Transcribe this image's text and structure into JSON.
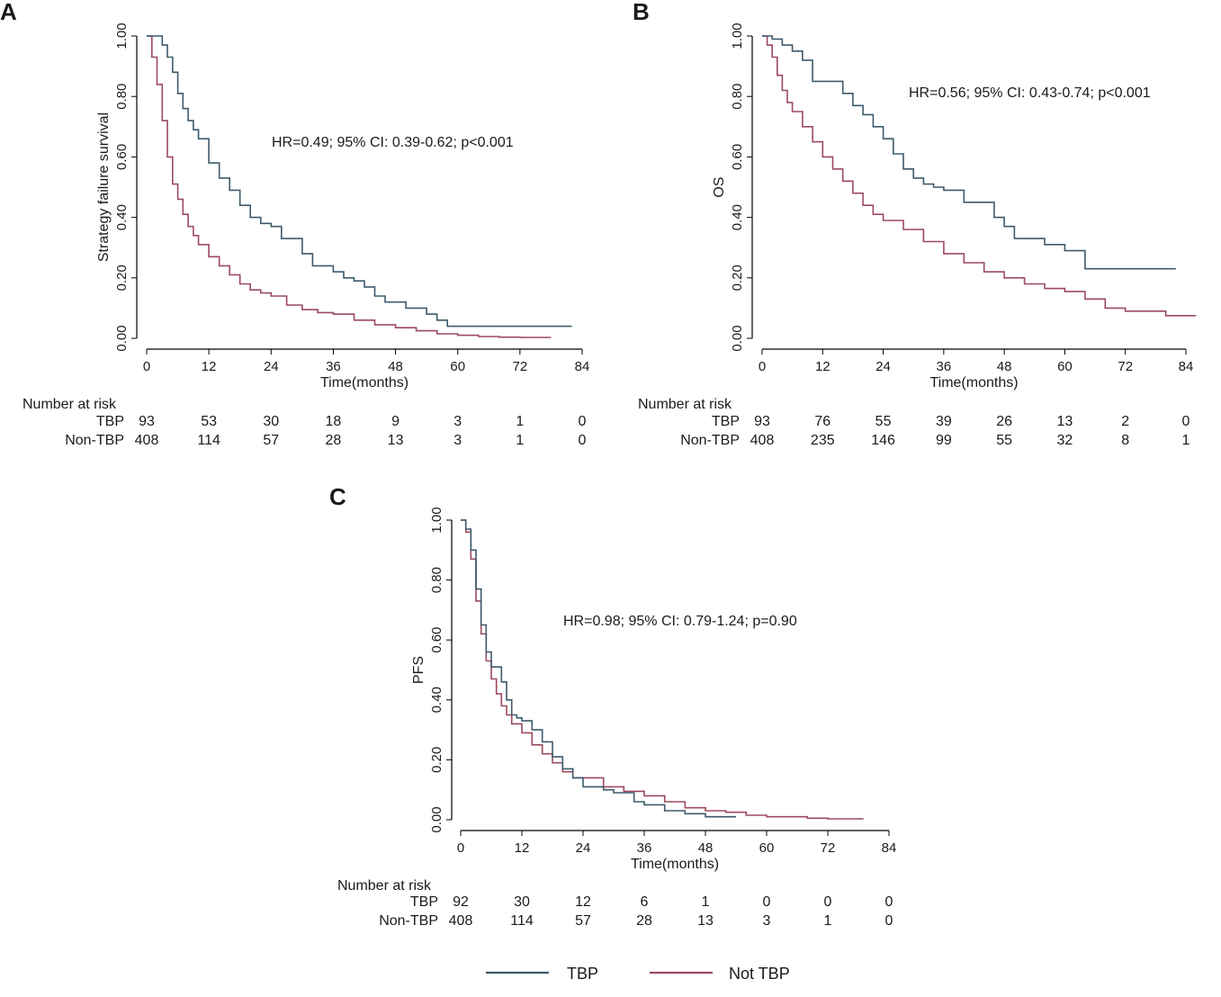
{
  "chart_data": [
    {
      "panel": "A",
      "type": "line",
      "title": "",
      "xlabel": "Time(months)",
      "ylabel": "Strategy failure survival",
      "xlim": [
        0,
        84
      ],
      "ylim": [
        0,
        1
      ],
      "xticks": [
        0,
        12,
        24,
        36,
        48,
        60,
        72,
        84
      ],
      "yticks": [
        "0.00",
        "0.20",
        "0.40",
        "0.60",
        "0.80",
        "1.00"
      ],
      "annotation": "HR=0.49; 95% CI: 0.39-0.62; p<0.001",
      "series": [
        {
          "name": "TBP",
          "color": "#3d5a6c",
          "x": [
            0,
            2,
            3,
            4,
            5,
            6,
            7,
            8,
            9,
            10,
            12,
            14,
            16,
            18,
            20,
            22,
            24,
            26,
            28,
            30,
            32,
            34,
            36,
            38,
            40,
            42,
            44,
            46,
            48,
            50,
            52,
            54,
            56,
            58,
            60,
            82
          ],
          "y": [
            1.0,
            1.0,
            0.97,
            0.93,
            0.88,
            0.81,
            0.76,
            0.72,
            0.69,
            0.66,
            0.58,
            0.53,
            0.49,
            0.44,
            0.4,
            0.38,
            0.37,
            0.33,
            0.33,
            0.28,
            0.24,
            0.24,
            0.22,
            0.2,
            0.19,
            0.17,
            0.14,
            0.12,
            0.12,
            0.1,
            0.1,
            0.08,
            0.06,
            0.04,
            0.04,
            0.04
          ]
        },
        {
          "name": "Not TBP",
          "color": "#9c4a5e",
          "x": [
            0,
            1,
            2,
            3,
            4,
            5,
            6,
            7,
            8,
            9,
            10,
            12,
            14,
            16,
            18,
            20,
            22,
            24,
            27,
            30,
            33,
            36,
            40,
            44,
            48,
            52,
            56,
            60,
            64,
            68,
            72,
            78
          ],
          "y": [
            1.0,
            0.93,
            0.84,
            0.72,
            0.6,
            0.51,
            0.46,
            0.41,
            0.37,
            0.34,
            0.31,
            0.27,
            0.24,
            0.21,
            0.18,
            0.16,
            0.15,
            0.14,
            0.11,
            0.095,
            0.085,
            0.08,
            0.06,
            0.045,
            0.035,
            0.025,
            0.015,
            0.01,
            0.006,
            0.004,
            0.003,
            0.003
          ]
        }
      ],
      "risk_table": {
        "header": "Number at risk",
        "rows": [
          {
            "label": "TBP",
            "values": [
              "93",
              "53",
              "30",
              "18",
              "9",
              "3",
              "1",
              "0"
            ]
          },
          {
            "label": "Non-TBP",
            "values": [
              "408",
              "114",
              "57",
              "28",
              "13",
              "3",
              "1",
              "0"
            ]
          }
        ]
      }
    },
    {
      "panel": "B",
      "type": "line",
      "title": "",
      "xlabel": "Time(months)",
      "ylabel": "OS",
      "xlim": [
        0,
        84
      ],
      "ylim": [
        0,
        1
      ],
      "xticks": [
        0,
        12,
        24,
        36,
        48,
        60,
        72,
        84
      ],
      "yticks": [
        "0.00",
        "0.20",
        "0.40",
        "0.60",
        "0.80",
        "1.00"
      ],
      "annotation": "HR=0.56; 95% CI: 0.43-0.74; p<0.001",
      "series": [
        {
          "name": "TBP",
          "color": "#3d5a6c",
          "x": [
            0,
            2,
            4,
            6,
            8,
            10,
            12,
            16,
            18,
            20,
            22,
            24,
            26,
            28,
            30,
            32,
            34,
            36,
            40,
            42,
            46,
            48,
            50,
            56,
            60,
            64,
            70,
            82
          ],
          "y": [
            1.0,
            0.99,
            0.97,
            0.95,
            0.92,
            0.85,
            0.85,
            0.81,
            0.77,
            0.74,
            0.7,
            0.66,
            0.61,
            0.56,
            0.53,
            0.51,
            0.5,
            0.49,
            0.45,
            0.45,
            0.4,
            0.37,
            0.33,
            0.31,
            0.29,
            0.23,
            0.23,
            0.23
          ]
        },
        {
          "name": "Not TBP",
          "color": "#9c4a5e",
          "x": [
            0,
            1,
            2,
            3,
            4,
            5,
            6,
            8,
            10,
            12,
            14,
            16,
            18,
            20,
            22,
            24,
            28,
            32,
            36,
            40,
            44,
            48,
            52,
            56,
            60,
            64,
            68,
            72,
            76,
            80,
            86
          ],
          "y": [
            1.0,
            0.97,
            0.93,
            0.87,
            0.82,
            0.78,
            0.75,
            0.7,
            0.65,
            0.6,
            0.56,
            0.52,
            0.48,
            0.44,
            0.41,
            0.39,
            0.36,
            0.32,
            0.28,
            0.25,
            0.22,
            0.2,
            0.18,
            0.165,
            0.155,
            0.13,
            0.1,
            0.09,
            0.09,
            0.075,
            0.075
          ]
        }
      ],
      "risk_table": {
        "header": "Number at risk",
        "rows": [
          {
            "label": "TBP",
            "values": [
              "93",
              "76",
              "55",
              "39",
              "26",
              "13",
              "2",
              "0"
            ]
          },
          {
            "label": "Non-TBP",
            "values": [
              "408",
              "235",
              "146",
              "99",
              "55",
              "32",
              "8",
              "1"
            ]
          }
        ]
      }
    },
    {
      "panel": "C",
      "type": "line",
      "title": "",
      "xlabel": "Time(months)",
      "ylabel": "PFS",
      "xlim": [
        0,
        84
      ],
      "ylim": [
        0,
        1
      ],
      "xticks": [
        0,
        12,
        24,
        36,
        48,
        60,
        72,
        84
      ],
      "yticks": [
        "0.00",
        "0.20",
        "0.40",
        "0.60",
        "0.80",
        "1.00"
      ],
      "annotation": "HR=0.98; 95% CI: 0.79-1.24; p=0.90",
      "series": [
        {
          "name": "TBP",
          "color": "#3d5a6c",
          "x": [
            0,
            1,
            2,
            3,
            4,
            5,
            6,
            7,
            8,
            9,
            10,
            11,
            12,
            14,
            16,
            18,
            20,
            22,
            24,
            28,
            30,
            34,
            36,
            40,
            44,
            48,
            54
          ],
          "y": [
            1.0,
            0.97,
            0.9,
            0.77,
            0.65,
            0.56,
            0.51,
            0.51,
            0.46,
            0.4,
            0.35,
            0.34,
            0.33,
            0.3,
            0.26,
            0.21,
            0.17,
            0.14,
            0.11,
            0.1,
            0.09,
            0.06,
            0.05,
            0.03,
            0.02,
            0.01,
            0.01
          ]
        },
        {
          "name": "Not TBP",
          "color": "#9c4a5e",
          "x": [
            0,
            1,
            2,
            3,
            4,
            5,
            6,
            7,
            8,
            9,
            10,
            12,
            14,
            16,
            18,
            20,
            22,
            24,
            28,
            32,
            36,
            40,
            44,
            48,
            52,
            56,
            60,
            68,
            72,
            79
          ],
          "y": [
            1.0,
            0.96,
            0.87,
            0.73,
            0.62,
            0.53,
            0.47,
            0.42,
            0.38,
            0.35,
            0.32,
            0.29,
            0.25,
            0.22,
            0.19,
            0.16,
            0.14,
            0.14,
            0.11,
            0.095,
            0.08,
            0.06,
            0.04,
            0.03,
            0.025,
            0.015,
            0.01,
            0.005,
            0.003,
            0.003
          ]
        }
      ],
      "risk_table": {
        "header": "Number at risk",
        "rows": [
          {
            "label": "TBP",
            "values": [
              "92",
              "30",
              "12",
              "6",
              "1",
              "0",
              "0",
              "0"
            ]
          },
          {
            "label": "Non-TBP",
            "values": [
              "408",
              "114",
              "57",
              "28",
              "13",
              "3",
              "1",
              "0"
            ]
          }
        ]
      }
    }
  ],
  "legend": [
    {
      "label": "TBP",
      "color": "#3d5a6c"
    },
    {
      "label": "Not TBP",
      "color": "#9c4a5e"
    }
  ]
}
